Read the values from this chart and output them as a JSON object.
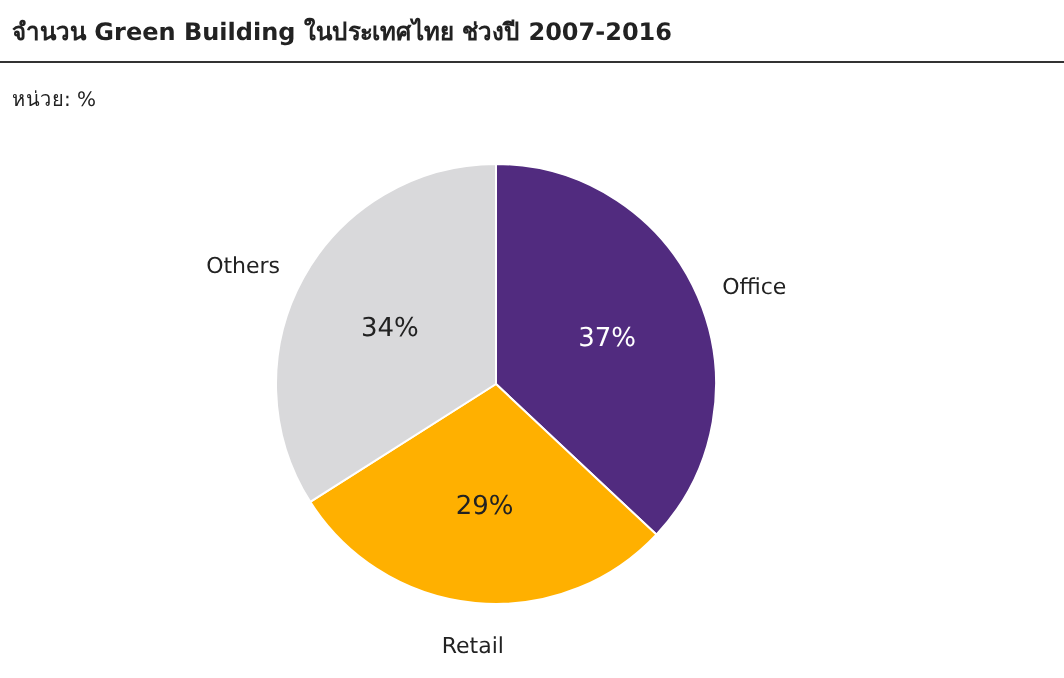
{
  "chart_data": {
    "type": "pie",
    "title": "จำนวน Green Building ในประเทศไทย ช่วงปี 2007-2016",
    "subtitle": "หน่วย: %",
    "categories": [
      "Office",
      "Retail",
      "Others"
    ],
    "values": [
      37,
      29,
      34
    ],
    "colors": [
      "#512b7f",
      "#ffb000",
      "#d9d9db"
    ],
    "value_labels": [
      "37%",
      "29%",
      "34%"
    ]
  }
}
